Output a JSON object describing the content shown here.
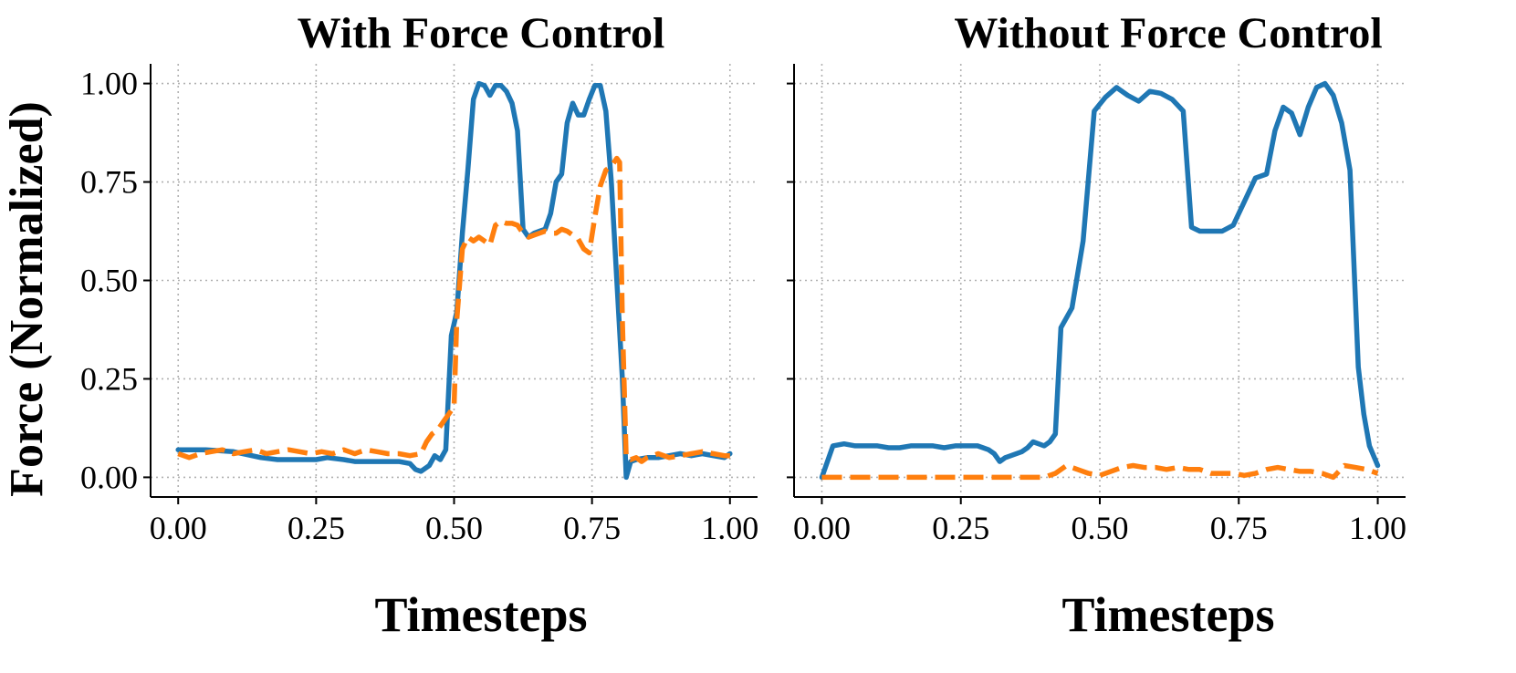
{
  "chart_data": [
    {
      "type": "line",
      "title": "With Force Control",
      "xlabel": "Timesteps",
      "ylabel": "Force (Normalized)",
      "xlim": [
        -0.05,
        1.05
      ],
      "ylim": [
        -0.05,
        1.05
      ],
      "xticks": [
        "0.00",
        "0.25",
        "0.50",
        "0.75",
        "1.00"
      ],
      "yticks": [
        "0.00",
        "0.25",
        "0.50",
        "0.75",
        "1.00"
      ],
      "grid": true,
      "legend": false,
      "series": [
        {
          "color": "#1f77b4",
          "style": "solid",
          "points": [
            [
              0.0,
              0.07
            ],
            [
              0.05,
              0.07
            ],
            [
              0.1,
              0.065
            ],
            [
              0.15,
              0.05
            ],
            [
              0.18,
              0.045
            ],
            [
              0.2,
              0.045
            ],
            [
              0.25,
              0.045
            ],
            [
              0.27,
              0.05
            ],
            [
              0.3,
              0.045
            ],
            [
              0.32,
              0.04
            ],
            [
              0.35,
              0.04
            ],
            [
              0.38,
              0.04
            ],
            [
              0.4,
              0.04
            ],
            [
              0.42,
              0.035
            ],
            [
              0.43,
              0.02
            ],
            [
              0.44,
              0.015
            ],
            [
              0.455,
              0.03
            ],
            [
              0.465,
              0.055
            ],
            [
              0.475,
              0.045
            ],
            [
              0.485,
              0.07
            ],
            [
              0.495,
              0.36
            ],
            [
              0.505,
              0.42
            ],
            [
              0.515,
              0.62
            ],
            [
              0.525,
              0.78
            ],
            [
              0.535,
              0.96
            ],
            [
              0.545,
              1.0
            ],
            [
              0.555,
              0.995
            ],
            [
              0.565,
              0.97
            ],
            [
              0.575,
              0.995
            ],
            [
              0.585,
              0.995
            ],
            [
              0.595,
              0.98
            ],
            [
              0.605,
              0.95
            ],
            [
              0.615,
              0.88
            ],
            [
              0.625,
              0.63
            ],
            [
              0.635,
              0.61
            ],
            [
              0.645,
              0.62
            ],
            [
              0.655,
              0.625
            ],
            [
              0.665,
              0.63
            ],
            [
              0.675,
              0.67
            ],
            [
              0.685,
              0.75
            ],
            [
              0.695,
              0.77
            ],
            [
              0.705,
              0.9
            ],
            [
              0.715,
              0.95
            ],
            [
              0.725,
              0.92
            ],
            [
              0.735,
              0.92
            ],
            [
              0.745,
              0.96
            ],
            [
              0.755,
              0.995
            ],
            [
              0.765,
              0.995
            ],
            [
              0.775,
              0.93
            ],
            [
              0.785,
              0.75
            ],
            [
              0.795,
              0.5
            ],
            [
              0.805,
              0.25
            ],
            [
              0.812,
              0.0
            ],
            [
              0.82,
              0.04
            ],
            [
              0.83,
              0.045
            ],
            [
              0.85,
              0.05
            ],
            [
              0.87,
              0.05
            ],
            [
              0.89,
              0.055
            ],
            [
              0.91,
              0.06
            ],
            [
              0.93,
              0.055
            ],
            [
              0.95,
              0.06
            ],
            [
              0.97,
              0.055
            ],
            [
              0.99,
              0.05
            ],
            [
              1.0,
              0.06
            ]
          ]
        },
        {
          "color": "#ff7f0e",
          "style": "dashed",
          "points": [
            [
              0.0,
              0.06
            ],
            [
              0.02,
              0.05
            ],
            [
              0.04,
              0.06
            ],
            [
              0.06,
              0.065
            ],
            [
              0.08,
              0.07
            ],
            [
              0.1,
              0.06
            ],
            [
              0.12,
              0.065
            ],
            [
              0.14,
              0.07
            ],
            [
              0.16,
              0.06
            ],
            [
              0.18,
              0.065
            ],
            [
              0.2,
              0.07
            ],
            [
              0.22,
              0.065
            ],
            [
              0.24,
              0.06
            ],
            [
              0.26,
              0.065
            ],
            [
              0.28,
              0.06
            ],
            [
              0.3,
              0.07
            ],
            [
              0.32,
              0.06
            ],
            [
              0.34,
              0.07
            ],
            [
              0.36,
              0.065
            ],
            [
              0.38,
              0.06
            ],
            [
              0.4,
              0.06
            ],
            [
              0.42,
              0.055
            ],
            [
              0.44,
              0.06
            ],
            [
              0.45,
              0.09
            ],
            [
              0.46,
              0.11
            ],
            [
              0.47,
              0.12
            ],
            [
              0.48,
              0.14
            ],
            [
              0.49,
              0.16
            ],
            [
              0.5,
              0.18
            ],
            [
              0.505,
              0.4
            ],
            [
              0.515,
              0.58
            ],
            [
              0.525,
              0.61
            ],
            [
              0.535,
              0.6
            ],
            [
              0.545,
              0.61
            ],
            [
              0.555,
              0.6
            ],
            [
              0.565,
              0.59
            ],
            [
              0.575,
              0.64
            ],
            [
              0.585,
              0.65
            ],
            [
              0.595,
              0.645
            ],
            [
              0.605,
              0.645
            ],
            [
              0.615,
              0.64
            ],
            [
              0.625,
              0.62
            ],
            [
              0.635,
              0.61
            ],
            [
              0.645,
              0.615
            ],
            [
              0.655,
              0.62
            ],
            [
              0.665,
              0.625
            ],
            [
              0.675,
              0.62
            ],
            [
              0.685,
              0.62
            ],
            [
              0.695,
              0.63
            ],
            [
              0.705,
              0.625
            ],
            [
              0.715,
              0.615
            ],
            [
              0.725,
              0.605
            ],
            [
              0.735,
              0.58
            ],
            [
              0.745,
              0.57
            ],
            [
              0.755,
              0.66
            ],
            [
              0.765,
              0.74
            ],
            [
              0.775,
              0.78
            ],
            [
              0.785,
              0.79
            ],
            [
              0.795,
              0.81
            ],
            [
              0.8,
              0.8
            ],
            [
              0.805,
              0.4
            ],
            [
              0.812,
              0.05
            ],
            [
              0.82,
              0.045
            ],
            [
              0.83,
              0.05
            ],
            [
              0.84,
              0.04
            ],
            [
              0.85,
              0.05
            ],
            [
              0.87,
              0.06
            ],
            [
              0.89,
              0.05
            ],
            [
              0.91,
              0.055
            ],
            [
              0.93,
              0.06
            ],
            [
              0.95,
              0.065
            ],
            [
              0.97,
              0.06
            ],
            [
              0.99,
              0.055
            ],
            [
              1.0,
              0.055
            ]
          ]
        }
      ]
    },
    {
      "type": "line",
      "title": "Without Force Control",
      "xlabel": "Timesteps",
      "ylabel": "",
      "xlim": [
        -0.05,
        1.05
      ],
      "ylim": [
        -0.05,
        1.05
      ],
      "xticks": [
        "0.00",
        "0.25",
        "0.50",
        "0.75",
        "1.00"
      ],
      "yticks": [],
      "grid": true,
      "legend": false,
      "series": [
        {
          "color": "#1f77b4",
          "style": "solid",
          "points": [
            [
              0.0,
              0.0
            ],
            [
              0.02,
              0.08
            ],
            [
              0.04,
              0.085
            ],
            [
              0.06,
              0.08
            ],
            [
              0.08,
              0.08
            ],
            [
              0.1,
              0.08
            ],
            [
              0.12,
              0.075
            ],
            [
              0.14,
              0.075
            ],
            [
              0.16,
              0.08
            ],
            [
              0.18,
              0.08
            ],
            [
              0.2,
              0.08
            ],
            [
              0.22,
              0.075
            ],
            [
              0.24,
              0.08
            ],
            [
              0.26,
              0.08
            ],
            [
              0.28,
              0.08
            ],
            [
              0.29,
              0.075
            ],
            [
              0.3,
              0.07
            ],
            [
              0.31,
              0.06
            ],
            [
              0.32,
              0.04
            ],
            [
              0.33,
              0.05
            ],
            [
              0.34,
              0.055
            ],
            [
              0.36,
              0.065
            ],
            [
              0.37,
              0.075
            ],
            [
              0.38,
              0.09
            ],
            [
              0.39,
              0.085
            ],
            [
              0.4,
              0.08
            ],
            [
              0.41,
              0.09
            ],
            [
              0.42,
              0.11
            ],
            [
              0.43,
              0.38
            ],
            [
              0.45,
              0.43
            ],
            [
              0.47,
              0.6
            ],
            [
              0.49,
              0.93
            ],
            [
              0.51,
              0.965
            ],
            [
              0.53,
              0.99
            ],
            [
              0.55,
              0.97
            ],
            [
              0.57,
              0.955
            ],
            [
              0.59,
              0.98
            ],
            [
              0.61,
              0.975
            ],
            [
              0.63,
              0.96
            ],
            [
              0.65,
              0.93
            ],
            [
              0.665,
              0.635
            ],
            [
              0.68,
              0.625
            ],
            [
              0.7,
              0.625
            ],
            [
              0.72,
              0.625
            ],
            [
              0.74,
              0.64
            ],
            [
              0.76,
              0.7
            ],
            [
              0.78,
              0.76
            ],
            [
              0.8,
              0.77
            ],
            [
              0.815,
              0.88
            ],
            [
              0.83,
              0.94
            ],
            [
              0.845,
              0.925
            ],
            [
              0.86,
              0.87
            ],
            [
              0.875,
              0.94
            ],
            [
              0.89,
              0.99
            ],
            [
              0.905,
              1.0
            ],
            [
              0.92,
              0.97
            ],
            [
              0.935,
              0.9
            ],
            [
              0.95,
              0.78
            ],
            [
              0.965,
              0.28
            ],
            [
              0.975,
              0.16
            ],
            [
              0.985,
              0.08
            ],
            [
              1.0,
              0.03
            ]
          ]
        },
        {
          "color": "#ff7f0e",
          "style": "dashed",
          "points": [
            [
              0.0,
              0.0
            ],
            [
              0.05,
              0.0
            ],
            [
              0.1,
              0.0
            ],
            [
              0.15,
              0.0
            ],
            [
              0.2,
              0.0
            ],
            [
              0.25,
              0.0
            ],
            [
              0.3,
              0.0
            ],
            [
              0.35,
              0.0
            ],
            [
              0.4,
              0.0
            ],
            [
              0.42,
              0.01
            ],
            [
              0.44,
              0.03
            ],
            [
              0.46,
              0.02
            ],
            [
              0.48,
              0.01
            ],
            [
              0.5,
              0.005
            ],
            [
              0.52,
              0.015
            ],
            [
              0.54,
              0.025
            ],
            [
              0.56,
              0.03
            ],
            [
              0.58,
              0.025
            ],
            [
              0.6,
              0.025
            ],
            [
              0.62,
              0.02
            ],
            [
              0.64,
              0.025
            ],
            [
              0.66,
              0.02
            ],
            [
              0.68,
              0.02
            ],
            [
              0.7,
              0.01
            ],
            [
              0.72,
              0.01
            ],
            [
              0.74,
              0.01
            ],
            [
              0.76,
              0.005
            ],
            [
              0.78,
              0.01
            ],
            [
              0.8,
              0.02
            ],
            [
              0.82,
              0.025
            ],
            [
              0.84,
              0.02
            ],
            [
              0.86,
              0.015
            ],
            [
              0.88,
              0.015
            ],
            [
              0.9,
              0.01
            ],
            [
              0.92,
              0.0
            ],
            [
              0.94,
              0.03
            ],
            [
              0.96,
              0.025
            ],
            [
              0.98,
              0.02
            ],
            [
              1.0,
              0.01
            ]
          ]
        }
      ]
    }
  ]
}
